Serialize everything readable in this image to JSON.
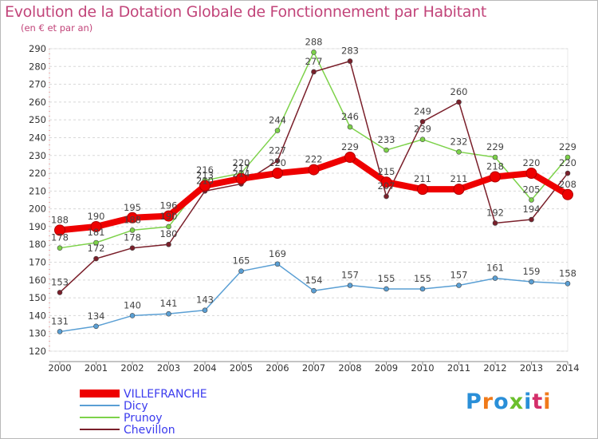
{
  "title": "Evolution de la Dotation Globale de Fonctionnement par Habitant",
  "subtitle": "(en € et par an)",
  "logo": {
    "text": "Proxiti",
    "letters": [
      "P",
      "r",
      "o",
      "x",
      "i",
      "t",
      "i"
    ],
    "colors": [
      "#2a8fd8",
      "#f07a1a",
      "#2a8fd8",
      "#6bbf2c",
      "#2a8fd8",
      "#d42f6a",
      "#f07a1a"
    ]
  },
  "chart_data": {
    "type": "line",
    "x": [
      "2000",
      "2001",
      "2002",
      "2003",
      "2004",
      "2005",
      "2006",
      "2007",
      "2008",
      "2009",
      "2010",
      "2011",
      "2012",
      "2013",
      "2014"
    ],
    "ylim": [
      120,
      290
    ],
    "yticks": [
      120,
      130,
      140,
      150,
      160,
      170,
      180,
      190,
      200,
      210,
      220,
      230,
      240,
      250,
      260,
      270,
      280,
      290
    ],
    "grid": "horizontal dashed",
    "legend": "bottom-left",
    "series": [
      {
        "name": "VILLEFRANCHE",
        "color": "#ee0000",
        "width": 8,
        "legend_color": "#3a3aee",
        "labels": true,
        "values": [
          188,
          190,
          195,
          196,
          213,
          217,
          220,
          222,
          229,
          215,
          211,
          211,
          218,
          220,
          208
        ]
      },
      {
        "name": "Dicy",
        "color": "#5a9fd4",
        "width": 1.5,
        "legend_color": "#3a3aee",
        "labels": true,
        "values": [
          131,
          134,
          140,
          141,
          143,
          165,
          169,
          154,
          157,
          155,
          155,
          157,
          161,
          159,
          158
        ]
      },
      {
        "name": "Prunoy",
        "color": "#7dd24a",
        "width": 1.5,
        "legend_color": "#3a3aee",
        "labels": true,
        "values": [
          178,
          181,
          188,
          190,
          216,
          220,
          244,
          288,
          246,
          233,
          239,
          232,
          229,
          205,
          229
        ]
      },
      {
        "name": "Chevillon",
        "color": "#7a1f2a",
        "width": 1.5,
        "legend_color": "#3a3aee",
        "labels": true,
        "values": [
          153,
          172,
          178,
          180,
          210,
          214,
          227,
          277,
          283,
          207,
          249,
          260,
          192,
          194,
          220
        ]
      }
    ]
  }
}
